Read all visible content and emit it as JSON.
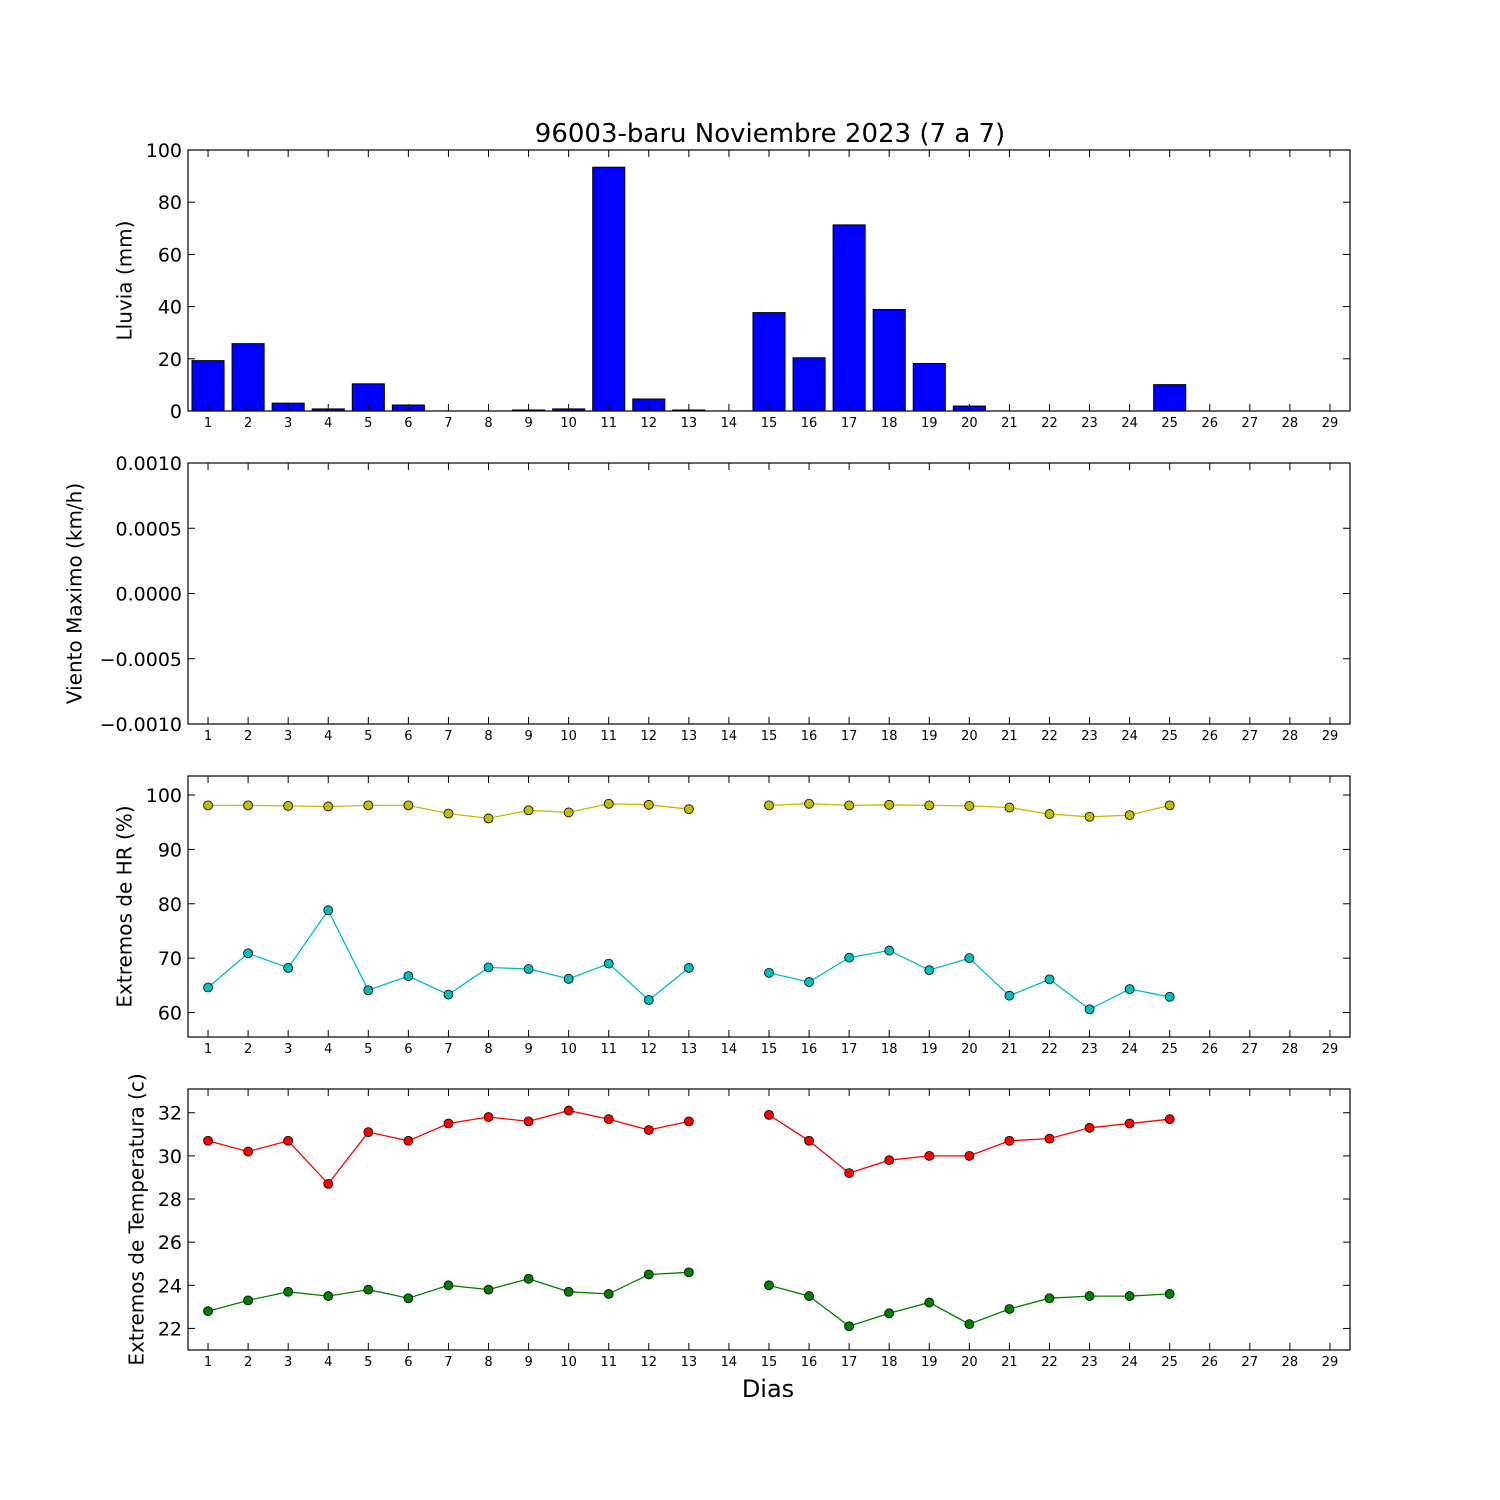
{
  "figure": {
    "title": "96003-baru Noviembre 2023  (7 a 7)",
    "xlabel": "Dias"
  },
  "chart_data": [
    {
      "type": "bar",
      "ylabel": "Lluvia (mm)",
      "ylim": [
        0,
        100
      ],
      "yticks": [
        0,
        20,
        40,
        60,
        80,
        100
      ],
      "ytick_labels": [
        "0",
        "20",
        "40",
        "60",
        "80",
        "100"
      ],
      "xlim": [
        0.5,
        29.5
      ],
      "x_ticks": [
        1,
        2,
        3,
        4,
        5,
        6,
        7,
        8,
        9,
        10,
        11,
        12,
        13,
        14,
        15,
        16,
        17,
        18,
        19,
        20,
        21,
        22,
        23,
        24,
        25,
        26,
        27,
        28,
        29
      ],
      "color": "#0000ff",
      "x": [
        1,
        2,
        3,
        4,
        5,
        6,
        7,
        8,
        9,
        10,
        11,
        12,
        13,
        14,
        15,
        16,
        17,
        18,
        19,
        20,
        21,
        22,
        23,
        24,
        25,
        26,
        27,
        28,
        29
      ],
      "values": [
        19.3,
        25.8,
        3.0,
        0.8,
        10.4,
        2.3,
        0,
        0,
        0.4,
        0.8,
        93.4,
        4.6,
        0.4,
        0,
        37.7,
        20.4,
        71.3,
        38.9,
        18.2,
        1.9,
        0,
        0,
        0,
        0,
        10.1,
        0,
        0,
        0,
        0
      ]
    },
    {
      "type": "line",
      "ylabel": "Viento Maximo (km/h)",
      "ylim": [
        -0.001,
        0.001
      ],
      "yticks": [
        -0.001,
        -0.0005,
        0,
        0.0005,
        0.001
      ],
      "ytick_labels": [
        "−0.0010",
        "−0.0005",
        "0.0000",
        "0.0005",
        "0.0010"
      ],
      "xlim": [
        0.5,
        29.5
      ],
      "x_ticks": [
        1,
        2,
        3,
        4,
        5,
        6,
        7,
        8,
        9,
        10,
        11,
        12,
        13,
        14,
        15,
        16,
        17,
        18,
        19,
        20,
        21,
        22,
        23,
        24,
        25,
        26,
        27,
        28,
        29
      ],
      "series": []
    },
    {
      "type": "line",
      "ylabel": "Extremos de HR (%)",
      "ylim": [
        55.5,
        103.5
      ],
      "yticks": [
        60,
        70,
        80,
        90,
        100
      ],
      "ytick_labels": [
        "60",
        "70",
        "80",
        "90",
        "100"
      ],
      "xlim": [
        0.5,
        29.5
      ],
      "x_ticks": [
        1,
        2,
        3,
        4,
        5,
        6,
        7,
        8,
        9,
        10,
        11,
        12,
        13,
        14,
        15,
        16,
        17,
        18,
        19,
        20,
        21,
        22,
        23,
        24,
        25,
        26,
        27,
        28,
        29
      ],
      "x": [
        1,
        2,
        3,
        4,
        5,
        6,
        7,
        8,
        9,
        10,
        11,
        12,
        13,
        14,
        15,
        16,
        17,
        18,
        19,
        20,
        21,
        22,
        23,
        24,
        25
      ],
      "series": [
        {
          "color": "#bfbf00",
          "values": [
            98.1,
            98.1,
            98.0,
            97.9,
            98.1,
            98.1,
            96.6,
            95.7,
            97.2,
            96.8,
            98.4,
            98.2,
            97.4,
            null,
            98.1,
            98.4,
            98.1,
            98.2,
            98.1,
            98.0,
            97.7,
            96.5,
            96.0,
            96.3,
            98.1
          ]
        },
        {
          "color": "#00bfbf",
          "values": [
            64.6,
            70.9,
            68.2,
            78.8,
            64.1,
            66.7,
            63.3,
            68.3,
            68.0,
            66.2,
            69.0,
            62.3,
            68.2,
            null,
            67.3,
            65.6,
            70.1,
            71.4,
            67.8,
            70.0,
            63.1,
            66.1,
            60.6,
            64.3,
            62.9
          ]
        }
      ]
    },
    {
      "type": "line",
      "ylabel": "Extremos de Temperatura (c)",
      "ylim": [
        21,
        33.1
      ],
      "yticks": [
        22,
        24,
        26,
        28,
        30,
        32
      ],
      "ytick_labels": [
        "22",
        "24",
        "26",
        "28",
        "30",
        "32"
      ],
      "xlim": [
        0.5,
        29.5
      ],
      "x_ticks": [
        1,
        2,
        3,
        4,
        5,
        6,
        7,
        8,
        9,
        10,
        11,
        12,
        13,
        14,
        15,
        16,
        17,
        18,
        19,
        20,
        21,
        22,
        23,
        24,
        25,
        26,
        27,
        28,
        29
      ],
      "x": [
        1,
        2,
        3,
        4,
        5,
        6,
        7,
        8,
        9,
        10,
        11,
        12,
        13,
        14,
        15,
        16,
        17,
        18,
        19,
        20,
        21,
        22,
        23,
        24,
        25
      ],
      "series": [
        {
          "color": "#ff0000",
          "values": [
            30.7,
            30.2,
            30.7,
            28.7,
            31.1,
            30.7,
            31.5,
            31.8,
            31.6,
            32.1,
            31.7,
            31.2,
            31.6,
            null,
            31.9,
            30.7,
            29.2,
            29.8,
            30.0,
            30.0,
            30.7,
            30.8,
            31.3,
            31.5,
            31.7
          ]
        },
        {
          "color": "#008000",
          "values": [
            22.8,
            23.3,
            23.7,
            23.5,
            23.8,
            23.4,
            24.0,
            23.8,
            24.3,
            23.7,
            23.6,
            24.5,
            24.6,
            null,
            24.0,
            23.5,
            22.1,
            22.7,
            23.2,
            22.2,
            22.9,
            23.4,
            23.5,
            23.5,
            23.6
          ]
        }
      ]
    }
  ]
}
